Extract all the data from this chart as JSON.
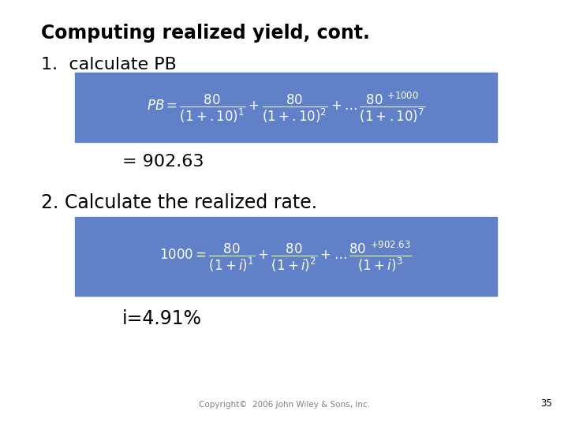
{
  "title": "Computing realized yield, cont.",
  "step1_label": "1.  calculate PB",
  "result1": "= 902.63",
  "step2_label": "2. Calculate the realized rate.",
  "result2": "i=4.91%",
  "copyright": "Copyright©  2006 John Wiley & Sons, Inc.",
  "page_num": "35",
  "bg_color": "#ffffff",
  "box_color": "#6080c8",
  "title_fontsize": 17,
  "label1_fontsize": 16,
  "label2_fontsize": 17,
  "formula_fontsize": 12,
  "result1_fontsize": 16,
  "result2_fontsize": 17,
  "copyright_fontsize": 7.5
}
